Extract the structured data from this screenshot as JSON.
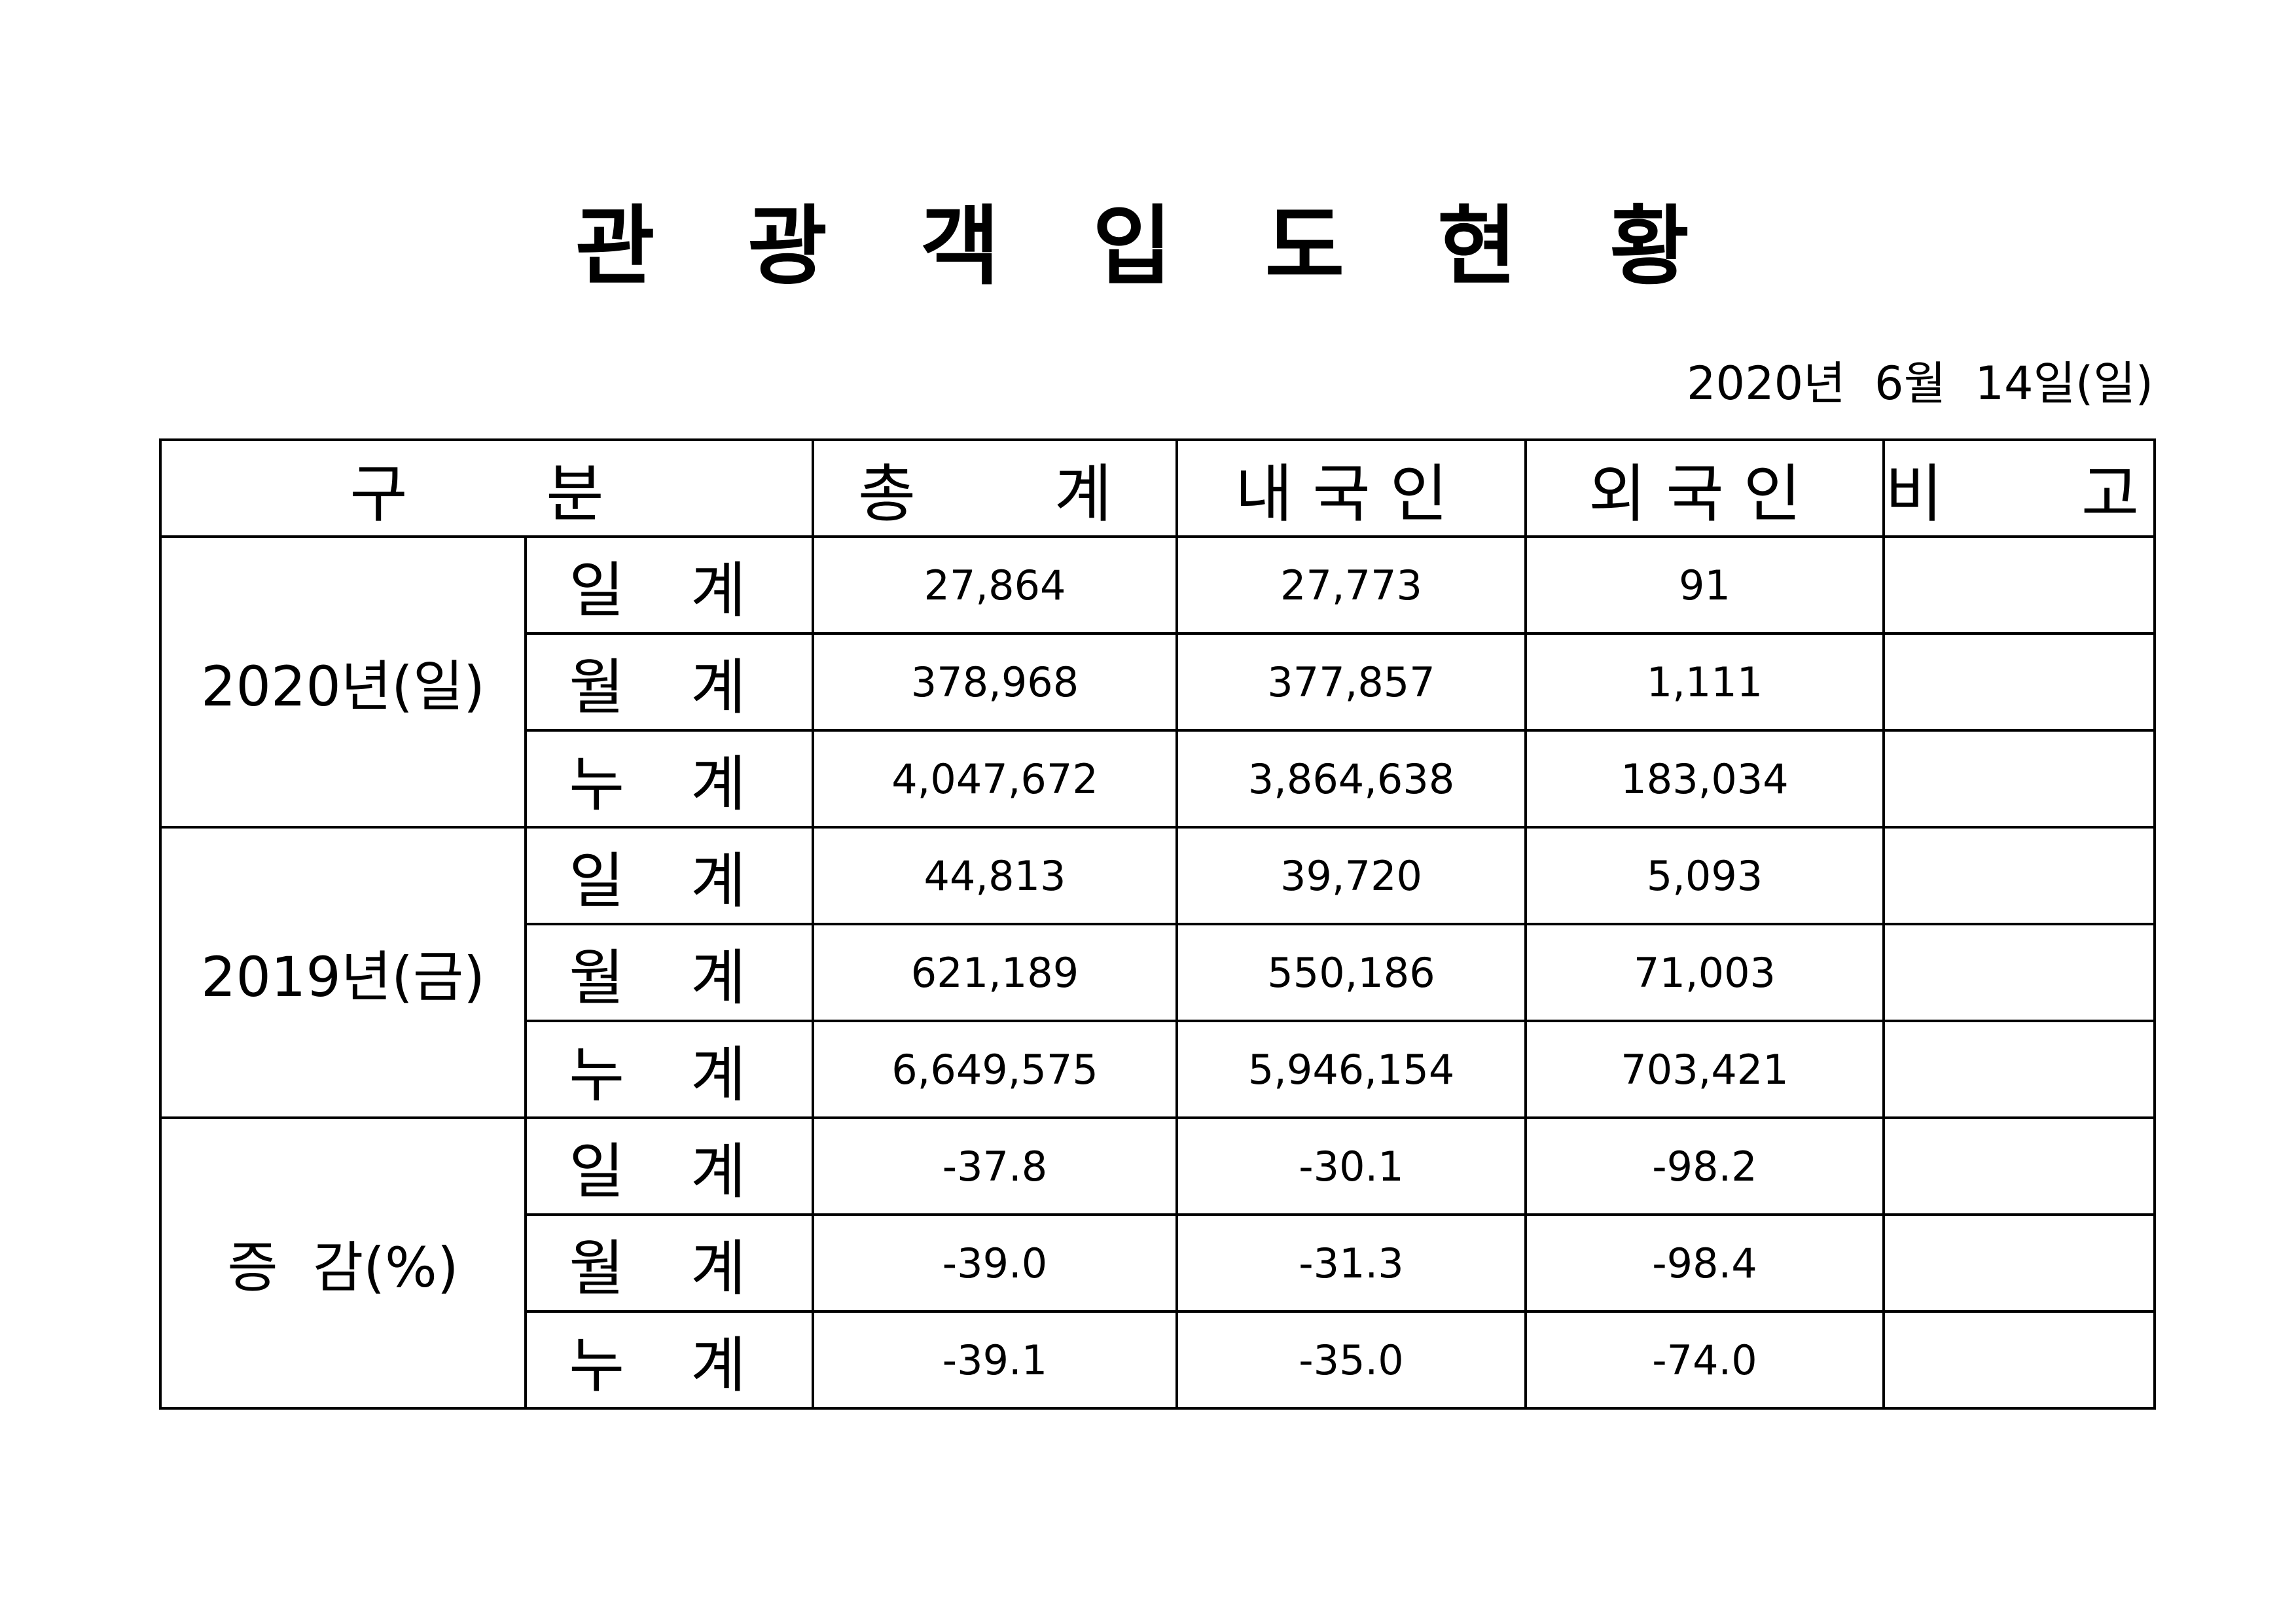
{
  "title": "관 광 객 입 도 현 황",
  "date": "2020년  6월  14일(일)",
  "table": {
    "header": [
      "구   분",
      "총   계",
      "내국인",
      "외국인",
      "비   고"
    ],
    "groups": [
      {
        "label": "2020년(일)",
        "rows": [
          {
            "label": "일 계",
            "values": [
              "27,864",
              "27,773",
              "91"
            ]
          },
          {
            "label": "월 계",
            "values": [
              "378,968",
              "377,857",
              "1,111"
            ]
          },
          {
            "label": "누 계",
            "values": [
              "4,047,672",
              "3,864,638",
              "183,034"
            ]
          }
        ]
      },
      {
        "label": "2019년(금)",
        "rows": [
          {
            "label": "일 계",
            "values": [
              "44,813",
              "39,720",
              "5,093"
            ]
          },
          {
            "label": "월 계",
            "values": [
              "621,189",
              "550,186",
              "71,003"
            ]
          },
          {
            "label": "누 계",
            "values": [
              "6,649,575",
              "5,946,154",
              "703,421"
            ]
          }
        ]
      },
      {
        "label": "증  감(%)",
        "rows": [
          {
            "label": "일 계",
            "values": [
              "-37.8",
              "-30.1",
              "-98.2"
            ]
          },
          {
            "label": "월 계",
            "values": [
              "-39.0",
              "-31.3",
              "-98.4"
            ]
          },
          {
            "label": "누 계",
            "values": [
              "-39.1",
              "-35.0",
              "-74.0"
            ]
          }
        ]
      }
    ]
  }
}
